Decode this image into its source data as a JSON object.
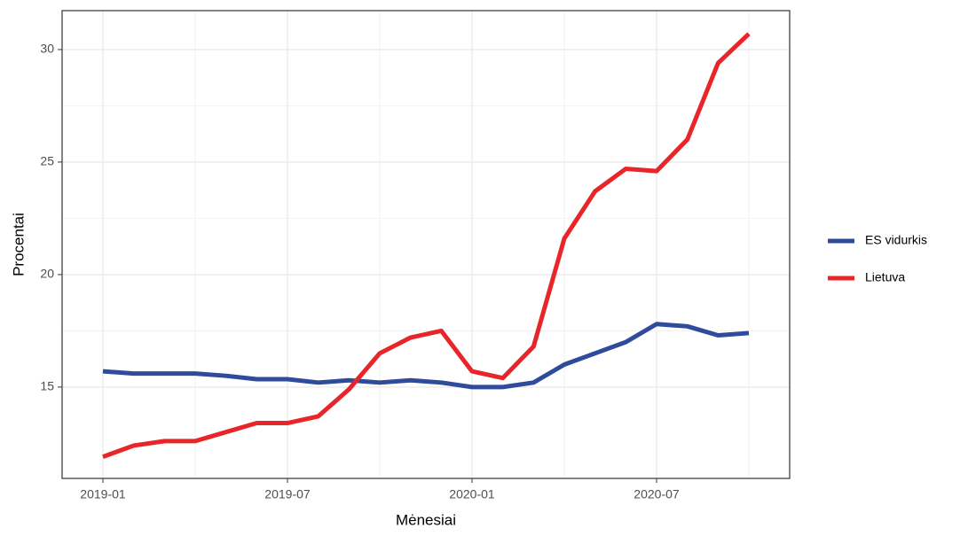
{
  "chart_data": {
    "type": "line",
    "xlabel": "Mėnesiai",
    "ylabel": "Procentai",
    "x": [
      "2019-01",
      "2019-02",
      "2019-03",
      "2019-04",
      "2019-05",
      "2019-06",
      "2019-07",
      "2019-08",
      "2019-09",
      "2019-10",
      "2019-11",
      "2019-12",
      "2020-01",
      "2020-02",
      "2020-03",
      "2020-04",
      "2020-05",
      "2020-06",
      "2020-07",
      "2020-08",
      "2020-09",
      "2020-10"
    ],
    "xticks": [
      "2019-01",
      "2019-07",
      "2020-01",
      "2020-07"
    ],
    "series": [
      {
        "name": "ES vidurkis",
        "color": "#2f4b9c",
        "values": [
          15.7,
          15.6,
          15.6,
          15.6,
          15.5,
          15.35,
          15.35,
          15.2,
          15.3,
          15.2,
          15.3,
          15.2,
          15.0,
          15.0,
          15.2,
          16.0,
          16.5,
          17.0,
          17.8,
          17.7,
          17.3,
          17.4
        ]
      },
      {
        "name": "Lietuva",
        "color": "#e8262a",
        "values": [
          11.9,
          12.4,
          12.6,
          12.6,
          13.0,
          13.4,
          13.4,
          13.7,
          14.9,
          16.5,
          17.2,
          17.5,
          15.7,
          15.4,
          16.8,
          21.6,
          23.7,
          24.7,
          24.6,
          26.0,
          29.4,
          30.7
        ]
      }
    ],
    "ylim": [
      10.94,
      31.73
    ],
    "yticks": [
      15,
      20,
      25,
      30
    ],
    "grid": true,
    "legend": "right"
  }
}
